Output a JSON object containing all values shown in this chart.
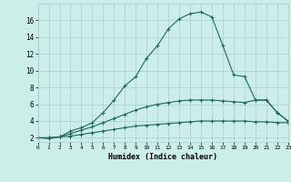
{
  "xlabel": "Humidex (Indice chaleur)",
  "background_color": "#cceee8",
  "grid_color": "#aacccc",
  "line_color": "#1a6b5a",
  "x_values": [
    0,
    1,
    2,
    3,
    4,
    5,
    6,
    7,
    8,
    9,
    10,
    11,
    12,
    13,
    14,
    15,
    16,
    17,
    18,
    19,
    20,
    21,
    22,
    23
  ],
  "curve1": [
    2,
    1.9,
    2.1,
    2.8,
    3.2,
    3.8,
    5.0,
    6.5,
    8.2,
    9.3,
    11.5,
    13.0,
    15.0,
    16.2,
    16.8,
    17.0,
    16.4,
    13.0,
    9.5,
    9.3,
    6.5,
    6.5,
    5.0,
    4.0
  ],
  "curve2": [
    2,
    2,
    2.1,
    2.5,
    2.9,
    3.3,
    3.8,
    4.3,
    4.8,
    5.3,
    5.7,
    6.0,
    6.2,
    6.4,
    6.5,
    6.5,
    6.5,
    6.4,
    6.3,
    6.2,
    6.5,
    6.5,
    5.0,
    4.0
  ],
  "curve3": [
    2,
    2,
    2.1,
    2.2,
    2.4,
    2.6,
    2.8,
    3.0,
    3.2,
    3.4,
    3.5,
    3.6,
    3.7,
    3.8,
    3.9,
    4.0,
    4.0,
    4.0,
    4.0,
    4.0,
    3.9,
    3.9,
    3.8,
    3.8
  ],
  "xlim": [
    0,
    23
  ],
  "ylim": [
    1.5,
    18
  ],
  "yticks": [
    2,
    4,
    6,
    8,
    10,
    12,
    14,
    16
  ],
  "xticks": [
    0,
    1,
    2,
    3,
    4,
    5,
    6,
    7,
    8,
    9,
    10,
    11,
    12,
    13,
    14,
    15,
    16,
    17,
    18,
    19,
    20,
    21,
    22,
    23
  ]
}
